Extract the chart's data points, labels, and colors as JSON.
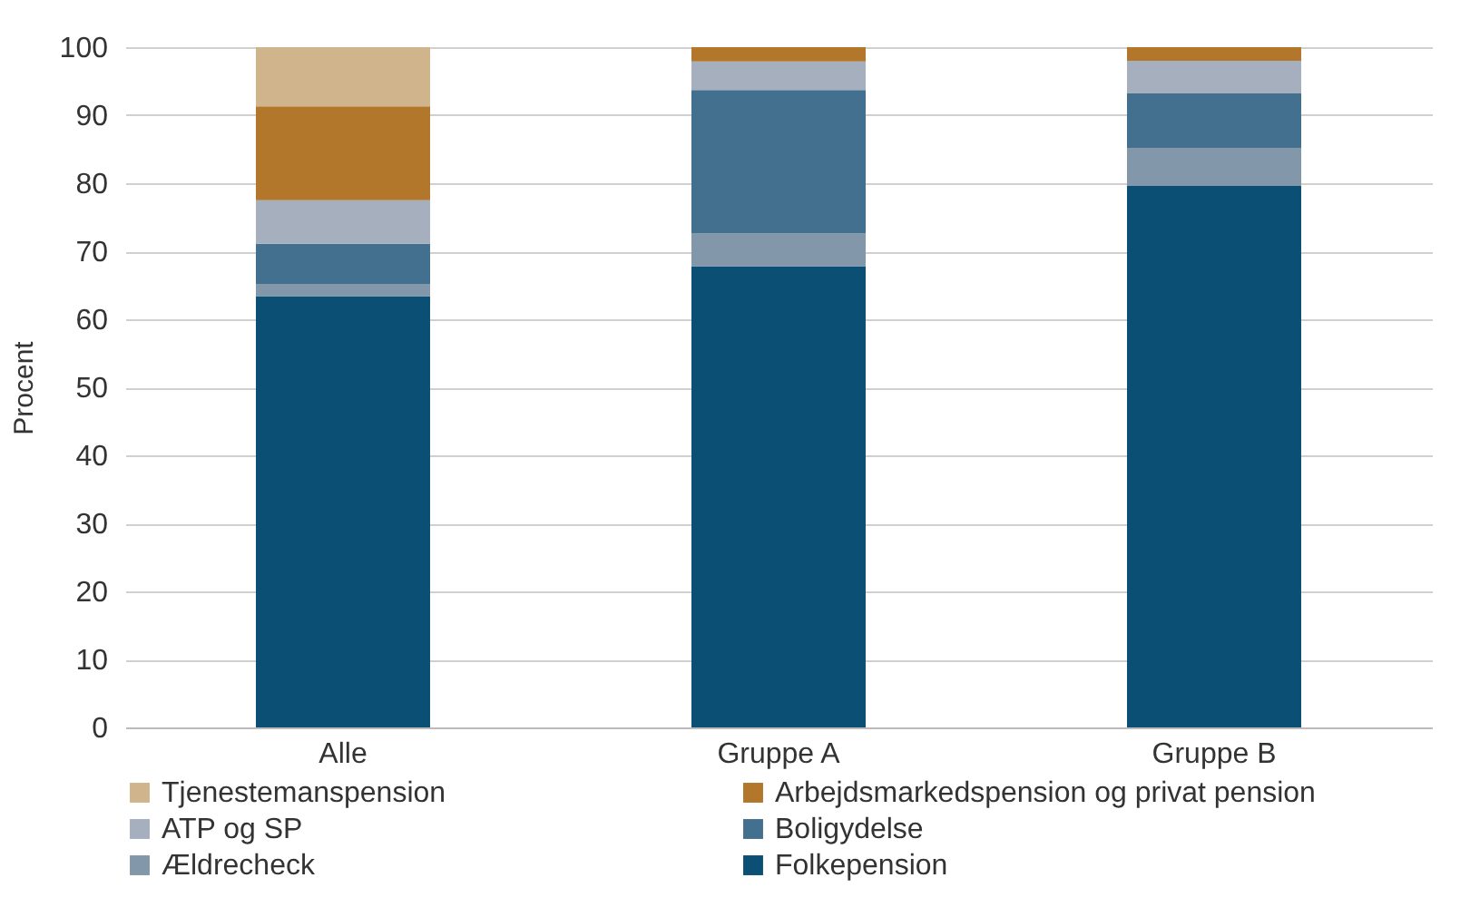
{
  "chart_data": {
    "type": "bar",
    "stacked": true,
    "ylabel": "Procent",
    "categories": [
      "Alle",
      "Gruppe A",
      "Gruppe B"
    ],
    "series": [
      {
        "name": "Folkepension",
        "color": "#0b4f75",
        "values": [
          63.4,
          67.8,
          79.6
        ]
      },
      {
        "name": "Ældrecheck",
        "color": "#8397ab",
        "values": [
          1.8,
          4.8,
          5.6
        ]
      },
      {
        "name": "Boligydelse",
        "color": "#43708f",
        "values": [
          5.9,
          21.1,
          8.0
        ]
      },
      {
        "name": "ATP og SP",
        "color": "#a5afbe",
        "values": [
          6.4,
          4.2,
          4.8
        ]
      },
      {
        "name": "Arbejdsmarkedspension og privat pension",
        "color": "#b2772b",
        "values": [
          13.8,
          2.1,
          2.0
        ]
      },
      {
        "name": "Tjenestemanspension",
        "color": "#d0b48b",
        "values": [
          8.7,
          0,
          0
        ]
      }
    ],
    "ylim": [
      0,
      100
    ],
    "yticks": [
      0,
      10,
      20,
      30,
      40,
      50,
      60,
      70,
      80,
      90,
      100
    ],
    "grid": "y",
    "legend": "bottom"
  }
}
